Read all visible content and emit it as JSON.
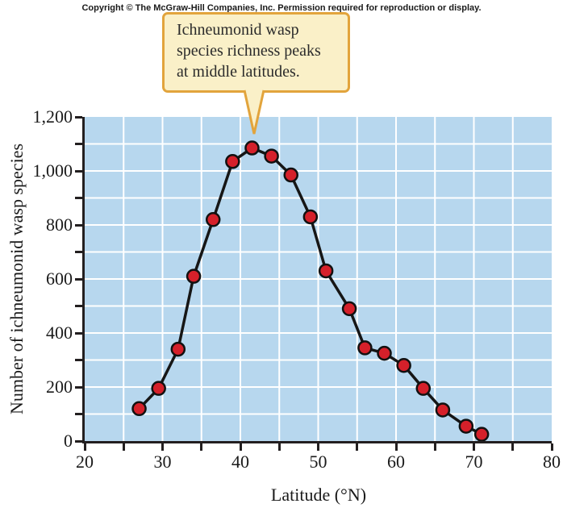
{
  "copyright": "Copyright © The McGraw-Hill Companies, Inc. Permission required for reproduction or display.",
  "callout": {
    "text": "Ichneumonid wasp\nspecies richness peaks\nat middle latitudes."
  },
  "chart_data": {
    "type": "line",
    "title": "",
    "xlabel": "Latitude (°N)",
    "ylabel": "Number of ichneumonid wasp species",
    "xlim": [
      20,
      80
    ],
    "ylim": [
      0,
      1200
    ],
    "x_tick_step": 5,
    "x_label_step": 10,
    "y_tick_step": 100,
    "y_label_step": 200,
    "x_tick_labels": [
      "20",
      "30",
      "40",
      "50",
      "60",
      "70",
      "80"
    ],
    "y_tick_labels": [
      "0",
      "200",
      "400",
      "600",
      "800",
      "1,000",
      "1,200"
    ],
    "grid": true,
    "legend": "none",
    "series": [
      {
        "name": "Ichneumonid wasp species richness",
        "x": [
          27,
          29.5,
          32,
          34,
          36.5,
          39,
          41.5,
          44,
          46.5,
          49,
          51,
          54,
          56,
          58.5,
          61,
          63.5,
          66,
          69,
          71
        ],
        "y": [
          120,
          195,
          340,
          610,
          820,
          1035,
          1085,
          1055,
          985,
          830,
          630,
          490,
          345,
          325,
          280,
          195,
          115,
          55,
          25
        ]
      }
    ]
  },
  "colors": {
    "plot_bg": "#b7d7ee",
    "gridline": "#ffffff",
    "line": "#161616",
    "point_fill": "#d5202a",
    "point_stroke": "#111111",
    "axis": "#231f20",
    "callout_bg": "#faf0c8",
    "callout_border": "#e2a43c",
    "text": "#1a1a1a"
  }
}
